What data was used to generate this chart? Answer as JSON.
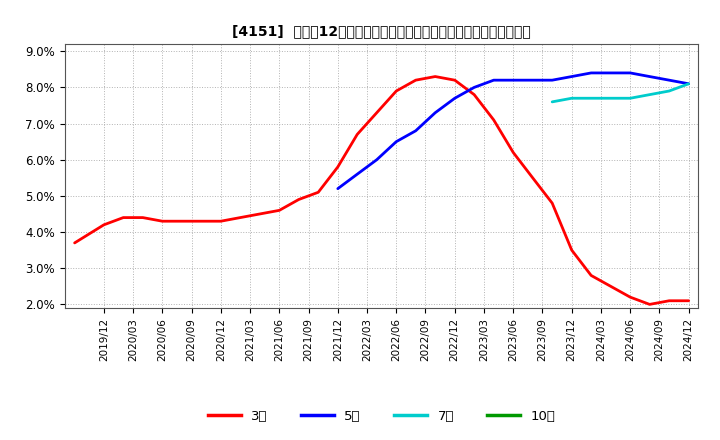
{
  "title": "[4151]  売上高12か月移動合計の対前年同期増減率の標準偏差の推移",
  "ylim": [
    0.019,
    0.092
  ],
  "yticks": [
    0.02,
    0.03,
    0.04,
    0.05,
    0.06,
    0.07,
    0.08,
    0.09
  ],
  "ytick_labels": [
    "2.0%",
    "3.0%",
    "4.0%",
    "5.0%",
    "6.0%",
    "7.0%",
    "8.0%",
    "9.0%"
  ],
  "background_color": "#ffffff",
  "plot_bg_color": "#ffffff",
  "grid_color": "#aaaaaa",
  "series": {
    "3year": {
      "label": "3年",
      "color": "#ff0000",
      "x": [
        2019.667,
        2019.917,
        2020.083,
        2020.25,
        2020.417,
        2020.583,
        2020.75,
        2020.917,
        2021.083,
        2021.25,
        2021.417,
        2021.583,
        2021.75,
        2021.917,
        2022.083,
        2022.25,
        2022.417,
        2022.583,
        2022.75,
        2022.917,
        2023.083,
        2023.25,
        2023.417,
        2023.583,
        2023.75,
        2023.917,
        2024.083,
        2024.25,
        2024.417,
        2024.583,
        2024.75,
        2024.917
      ],
      "y": [
        0.037,
        0.042,
        0.044,
        0.044,
        0.043,
        0.043,
        0.043,
        0.043,
        0.044,
        0.045,
        0.046,
        0.049,
        0.051,
        0.058,
        0.067,
        0.073,
        0.079,
        0.082,
        0.083,
        0.082,
        0.078,
        0.071,
        0.062,
        0.055,
        0.048,
        0.035,
        0.028,
        0.025,
        0.022,
        0.02,
        0.021,
        0.021
      ]
    },
    "5year": {
      "label": "5年",
      "color": "#0000ff",
      "x": [
        2021.917,
        2022.083,
        2022.25,
        2022.417,
        2022.583,
        2022.75,
        2022.917,
        2023.083,
        2023.25,
        2023.417,
        2023.583,
        2023.75,
        2023.917,
        2024.083,
        2024.25,
        2024.417,
        2024.583,
        2024.75,
        2024.917
      ],
      "y": [
        0.052,
        0.056,
        0.06,
        0.065,
        0.068,
        0.073,
        0.077,
        0.08,
        0.082,
        0.082,
        0.082,
        0.082,
        0.083,
        0.084,
        0.084,
        0.084,
        0.083,
        0.082,
        0.081
      ]
    },
    "7year": {
      "label": "7年",
      "color": "#00cccc",
      "x": [
        2023.75,
        2023.917,
        2024.083,
        2024.25,
        2024.417,
        2024.583,
        2024.75,
        2024.917
      ],
      "y": [
        0.076,
        0.077,
        0.077,
        0.077,
        0.077,
        0.078,
        0.079,
        0.081
      ]
    },
    "10year": {
      "label": "10年",
      "color": "#009900",
      "x": [],
      "y": []
    }
  },
  "xlim": [
    2019.583,
    2025.0
  ],
  "legend_colors": [
    "#ff0000",
    "#0000ff",
    "#00cccc",
    "#009900"
  ],
  "legend_labels": [
    "3年",
    "5年",
    "7年",
    "10年"
  ]
}
